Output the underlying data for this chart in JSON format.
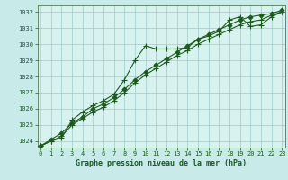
{
  "title": "Graphe pression niveau de la mer (hPa)",
  "background_color": "#c8eae8",
  "plot_bg_color": "#d8f2f0",
  "grid_color": "#99cccc",
  "line_color": "#1a5c1a",
  "border_color": "#336633",
  "xlim": [
    -0.3,
    23.3
  ],
  "ylim": [
    1023.6,
    1032.4
  ],
  "xticks": [
    0,
    1,
    2,
    3,
    4,
    5,
    6,
    7,
    8,
    9,
    10,
    11,
    12,
    13,
    14,
    15,
    16,
    17,
    18,
    19,
    20,
    21,
    22,
    23
  ],
  "yticks": [
    1024,
    1025,
    1026,
    1027,
    1028,
    1029,
    1030,
    1031,
    1032
  ],
  "series": [
    {
      "x": [
        0,
        1,
        2,
        3,
        4,
        5,
        6,
        7,
        8,
        9,
        10,
        11,
        12,
        13,
        14,
        15,
        16,
        17,
        18,
        19,
        20,
        21,
        22,
        23
      ],
      "y": [
        1023.7,
        1024.0,
        1024.2,
        1025.3,
        1025.8,
        1026.2,
        1026.5,
        1026.9,
        1027.8,
        1029.0,
        1029.9,
        1029.7,
        1029.7,
        1029.7,
        1029.8,
        1030.3,
        1030.5,
        1030.8,
        1031.5,
        1031.7,
        1031.1,
        1031.2,
        1031.7,
        1032.0
      ],
      "marker": "+",
      "markersize": 4,
      "linewidth": 0.8
    },
    {
      "x": [
        0,
        1,
        2,
        3,
        4,
        5,
        6,
        7,
        8,
        9,
        10,
        11,
        12,
        13,
        14,
        15,
        16,
        17,
        18,
        19,
        20,
        21,
        22,
        23
      ],
      "y": [
        1023.7,
        1024.1,
        1024.5,
        1025.1,
        1025.5,
        1026.0,
        1026.3,
        1026.7,
        1027.2,
        1027.8,
        1028.3,
        1028.7,
        1029.1,
        1029.5,
        1029.9,
        1030.3,
        1030.6,
        1030.9,
        1031.2,
        1031.5,
        1031.7,
        1031.8,
        1031.9,
        1032.1
      ],
      "marker": "D",
      "markersize": 2.5,
      "linewidth": 0.8
    },
    {
      "x": [
        0,
        1,
        2,
        3,
        4,
        5,
        6,
        7,
        8,
        9,
        10,
        11,
        12,
        13,
        14,
        15,
        16,
        17,
        18,
        19,
        20,
        21,
        22,
        23
      ],
      "y": [
        1023.7,
        1024.0,
        1024.3,
        1025.0,
        1025.4,
        1025.8,
        1026.1,
        1026.5,
        1027.0,
        1027.6,
        1028.1,
        1028.5,
        1028.9,
        1029.3,
        1029.6,
        1030.0,
        1030.3,
        1030.6,
        1030.9,
        1031.2,
        1031.4,
        1031.5,
        1031.8,
        1032.0
      ],
      "marker": "+",
      "markersize": 4,
      "linewidth": 0.8
    }
  ]
}
